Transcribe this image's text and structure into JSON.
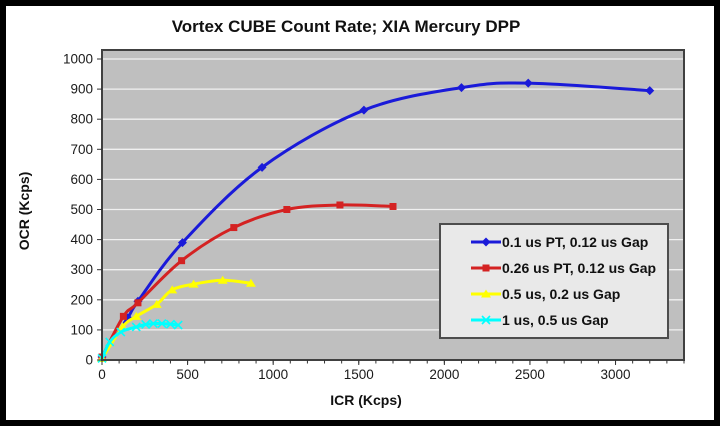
{
  "chart_data": {
    "type": "line",
    "title": "Vortex CUBE Count Rate; XIA Mercury DPP",
    "xlabel": "ICR (Kcps)",
    "ylabel": "OCR (Kcps)",
    "xlim": [
      0,
      3400
    ],
    "ylim": [
      0,
      1000
    ],
    "x_ticks": [
      0,
      500,
      1000,
      1500,
      2000,
      2500,
      3000
    ],
    "x_minor_step": 100,
    "y_ticks": [
      0,
      100,
      200,
      300,
      400,
      500,
      600,
      700,
      800,
      900,
      1000
    ],
    "grid": "horizontal",
    "legend_position": "middle-right",
    "series": [
      {
        "name": "0.1 us PT, 0.12 us Gap",
        "color": "#1a1ad9",
        "marker": "diamond",
        "points": [
          [
            0,
            10
          ],
          [
            150,
            140
          ],
          [
            210,
            195
          ],
          [
            470,
            390
          ],
          [
            935,
            640
          ],
          [
            1530,
            830
          ],
          [
            2100,
            905
          ],
          [
            2490,
            920
          ],
          [
            3200,
            895
          ]
        ]
      },
      {
        "name": "0.26 us PT, 0.12 us Gap",
        "color": "#d42222",
        "marker": "square",
        "points": [
          [
            0,
            10
          ],
          [
            125,
            145
          ],
          [
            210,
            190
          ],
          [
            465,
            330
          ],
          [
            770,
            440
          ],
          [
            1080,
            500
          ],
          [
            1390,
            515
          ],
          [
            1700,
            510
          ]
        ]
      },
      {
        "name": "0.5 us, 0.2 us Gap",
        "color": "#ffff00",
        "marker": "triangle",
        "points": [
          [
            0,
            5
          ],
          [
            120,
            110
          ],
          [
            200,
            145
          ],
          [
            320,
            185
          ],
          [
            410,
            233
          ],
          [
            535,
            252
          ],
          [
            705,
            265
          ],
          [
            870,
            255
          ]
        ]
      },
      {
        "name": "1 us, 0.5 us Gap",
        "color": "#00ffff",
        "marker": "x",
        "points": [
          [
            0,
            5
          ],
          [
            45,
            60
          ],
          [
            110,
            93
          ],
          [
            200,
            110
          ],
          [
            255,
            118
          ],
          [
            300,
            121
          ],
          [
            350,
            121
          ],
          [
            400,
            119
          ],
          [
            445,
            116
          ]
        ]
      }
    ],
    "styles": {
      "plot_bg": "#bfbfbf",
      "gridline": "#f0f0f0",
      "plot_border": "#404040",
      "tick_color": "#333333",
      "tick_label_color": "#1a1a1a",
      "legend_bg": "#e9e9e9",
      "legend_border": "#4d4d4d",
      "outer_frame": "#000000"
    }
  }
}
